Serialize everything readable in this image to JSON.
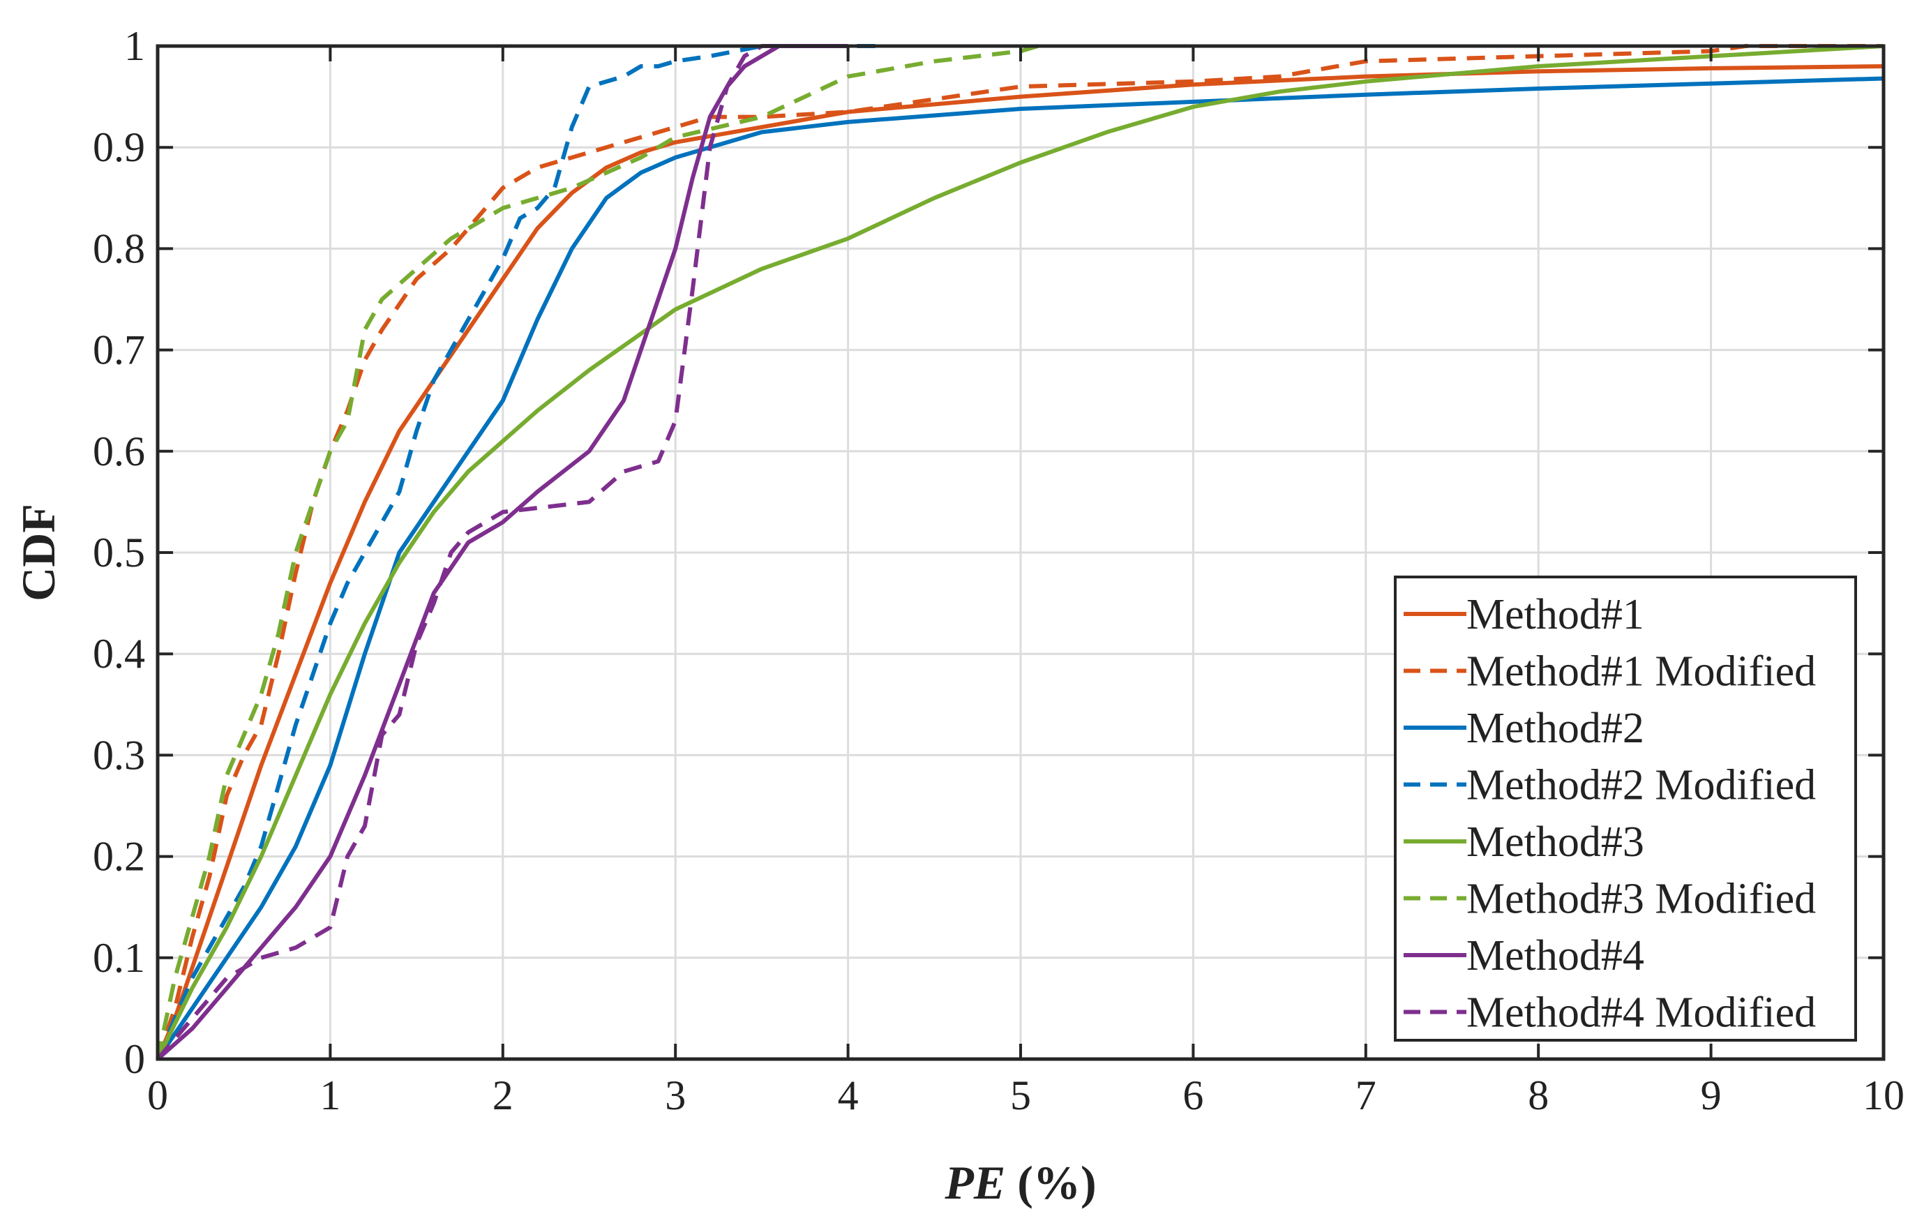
{
  "chart_data": {
    "type": "line",
    "title": "",
    "xlabel_italic": "PE",
    "xlabel_rest": " (%)",
    "ylabel": "CDF",
    "xlim": [
      0,
      10
    ],
    "ylim": [
      0,
      1
    ],
    "grid": true,
    "legend_position": "bottom-right",
    "x_ticks": [
      0,
      1,
      2,
      3,
      4,
      5,
      6,
      7,
      8,
      9,
      10
    ],
    "y_ticks": [
      0,
      0.1,
      0.2,
      0.3,
      0.4,
      0.5,
      0.6,
      0.7,
      0.8,
      0.9,
      1
    ],
    "x_tick_labels": [
      "0",
      "1",
      "2",
      "3",
      "4",
      "5",
      "6",
      "7",
      "8",
      "9",
      "10"
    ],
    "y_tick_labels": [
      "0",
      "0.1",
      "0.2",
      "0.3",
      "0.4",
      "0.5",
      "0.6",
      "0.7",
      "0.8",
      "0.9",
      "1"
    ],
    "series": [
      {
        "name": "Method#1",
        "color": "#D95319",
        "dashed": false,
        "x": [
          0,
          0.1,
          0.2,
          0.4,
          0.6,
          0.8,
          1.0,
          1.2,
          1.4,
          1.6,
          1.8,
          2.0,
          2.2,
          2.4,
          2.6,
          2.8,
          3.0,
          3.5,
          4.0,
          5.0,
          6.0,
          7.0,
          8.0,
          9.0,
          10.0
        ],
        "y": [
          0,
          0.04,
          0.09,
          0.19,
          0.29,
          0.38,
          0.47,
          0.55,
          0.62,
          0.67,
          0.72,
          0.77,
          0.82,
          0.855,
          0.88,
          0.895,
          0.905,
          0.92,
          0.935,
          0.95,
          0.962,
          0.97,
          0.975,
          0.978,
          0.98
        ]
      },
      {
        "name": "Method#1 Modified",
        "color": "#D95319",
        "dashed": true,
        "x": [
          0,
          0.1,
          0.2,
          0.3,
          0.4,
          0.5,
          0.6,
          0.7,
          0.8,
          0.9,
          1.0,
          1.1,
          1.2,
          1.3,
          1.5,
          1.7,
          1.9,
          2.0,
          2.2,
          2.4,
          2.8,
          3.0,
          3.2,
          3.5,
          4.0,
          5.0,
          6.0,
          6.5,
          7.0,
          8.0,
          9.0,
          9.2,
          10.0
        ],
        "y": [
          0,
          0.05,
          0.12,
          0.18,
          0.26,
          0.3,
          0.33,
          0.4,
          0.48,
          0.55,
          0.6,
          0.64,
          0.69,
          0.72,
          0.77,
          0.8,
          0.84,
          0.86,
          0.88,
          0.89,
          0.91,
          0.92,
          0.93,
          0.93,
          0.935,
          0.96,
          0.965,
          0.97,
          0.985,
          0.99,
          0.995,
          1.0,
          1.0
        ]
      },
      {
        "name": "Method#2",
        "color": "#0072BD",
        "dashed": false,
        "x": [
          0,
          0.2,
          0.4,
          0.6,
          0.8,
          1.0,
          1.2,
          1.4,
          1.6,
          1.8,
          2.0,
          2.2,
          2.4,
          2.6,
          2.8,
          3.0,
          3.2,
          3.5,
          4.0,
          5.0,
          6.0,
          7.0,
          8.0,
          9.0,
          10.0
        ],
        "y": [
          0,
          0.05,
          0.1,
          0.15,
          0.21,
          0.29,
          0.4,
          0.5,
          0.55,
          0.6,
          0.65,
          0.73,
          0.8,
          0.85,
          0.875,
          0.89,
          0.9,
          0.915,
          0.925,
          0.938,
          0.945,
          0.952,
          0.958,
          0.963,
          0.968
        ]
      },
      {
        "name": "Method#2 Modified",
        "color": "#0072BD",
        "dashed": true,
        "x": [
          0,
          0.1,
          0.2,
          0.3,
          0.4,
          0.5,
          0.6,
          0.7,
          0.8,
          0.9,
          1.0,
          1.1,
          1.2,
          1.4,
          1.5,
          1.6,
          1.8,
          2.0,
          2.1,
          2.2,
          2.3,
          2.4,
          2.5,
          2.7,
          2.8,
          2.9,
          3.0,
          3.2,
          3.5,
          4.0,
          4.2
        ],
        "y": [
          0,
          0.04,
          0.08,
          0.11,
          0.14,
          0.17,
          0.21,
          0.27,
          0.33,
          0.38,
          0.43,
          0.47,
          0.5,
          0.56,
          0.62,
          0.67,
          0.73,
          0.79,
          0.83,
          0.84,
          0.86,
          0.92,
          0.96,
          0.97,
          0.98,
          0.98,
          0.985,
          0.99,
          1.0,
          1.0,
          1.0
        ]
      },
      {
        "name": "Method#3",
        "color": "#77AC30",
        "dashed": false,
        "x": [
          0,
          0.2,
          0.4,
          0.6,
          0.8,
          1.0,
          1.2,
          1.4,
          1.6,
          1.8,
          2.0,
          2.2,
          2.5,
          3.0,
          3.5,
          4.0,
          4.5,
          5.0,
          5.5,
          6.0,
          6.5,
          7.0,
          8.0,
          9.0,
          10.0
        ],
        "y": [
          0,
          0.07,
          0.13,
          0.2,
          0.28,
          0.36,
          0.43,
          0.49,
          0.54,
          0.58,
          0.61,
          0.64,
          0.68,
          0.74,
          0.78,
          0.81,
          0.85,
          0.885,
          0.915,
          0.94,
          0.955,
          0.965,
          0.98,
          0.99,
          1.0
        ]
      },
      {
        "name": "Method#3 Modified",
        "color": "#77AC30",
        "dashed": true,
        "x": [
          0,
          0.1,
          0.2,
          0.3,
          0.4,
          0.5,
          0.6,
          0.7,
          0.8,
          0.9,
          1.0,
          1.1,
          1.2,
          1.3,
          1.5,
          1.7,
          2.0,
          2.4,
          2.8,
          3.0,
          3.5,
          4.0,
          4.5,
          5.0,
          5.1
        ],
        "y": [
          0,
          0.08,
          0.14,
          0.2,
          0.28,
          0.32,
          0.36,
          0.42,
          0.5,
          0.55,
          0.6,
          0.63,
          0.72,
          0.75,
          0.78,
          0.81,
          0.84,
          0.86,
          0.89,
          0.91,
          0.93,
          0.97,
          0.985,
          0.995,
          1.0
        ]
      },
      {
        "name": "Method#4",
        "color": "#7E2F8E",
        "dashed": false,
        "x": [
          0,
          0.2,
          0.4,
          0.6,
          0.8,
          1.0,
          1.2,
          1.4,
          1.6,
          1.8,
          2.0,
          2.2,
          2.5,
          2.7,
          2.8,
          2.9,
          3.0,
          3.1,
          3.2,
          3.3,
          3.4,
          3.5,
          3.6,
          4.0
        ],
        "y": [
          0,
          0.03,
          0.07,
          0.11,
          0.15,
          0.2,
          0.28,
          0.37,
          0.46,
          0.51,
          0.53,
          0.56,
          0.6,
          0.65,
          0.7,
          0.75,
          0.8,
          0.87,
          0.93,
          0.96,
          0.98,
          0.99,
          1.0,
          1.0
        ]
      },
      {
        "name": "Method#4 Modified",
        "color": "#7E2F8E",
        "dashed": true,
        "x": [
          0,
          0.2,
          0.4,
          0.6,
          0.8,
          1.0,
          1.1,
          1.2,
          1.3,
          1.4,
          1.5,
          1.6,
          1.7,
          1.8,
          2.0,
          2.5,
          2.7,
          2.9,
          3.0,
          3.1,
          3.2,
          3.3,
          3.4,
          3.5,
          3.6
        ],
        "y": [
          0,
          0.04,
          0.08,
          0.1,
          0.11,
          0.13,
          0.2,
          0.23,
          0.32,
          0.34,
          0.41,
          0.45,
          0.5,
          0.52,
          0.54,
          0.55,
          0.58,
          0.59,
          0.63,
          0.76,
          0.9,
          0.96,
          0.99,
          1.0,
          1.0
        ]
      }
    ]
  }
}
